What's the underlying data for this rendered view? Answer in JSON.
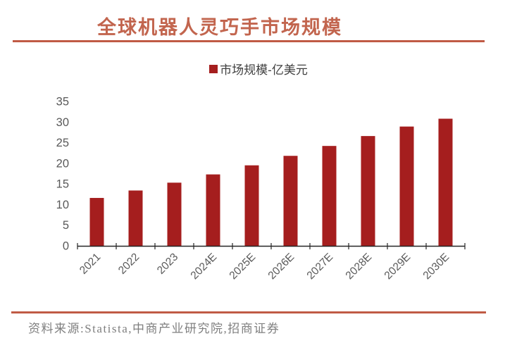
{
  "title": "全球机器人灵巧手市场规模",
  "legend": {
    "label": "市场规模-亿美元"
  },
  "source": {
    "text": "资料来源:Statista,中商产业研究院,招商证券"
  },
  "colors": {
    "bar": "#A51E1E",
    "title_text": "#C2654E",
    "divider": "#C05B45",
    "axis_label": "#595959",
    "legend_text": "#3F3F3F",
    "source_text": "#7F7F7F",
    "axis_line": "#262626"
  },
  "chart_data": {
    "type": "bar",
    "title": "全球机器人灵巧手市场规模",
    "categories": [
      "2021",
      "2022",
      "2023",
      "2024E",
      "2025E",
      "2026E",
      "2027E",
      "2028E",
      "2029E",
      "2030E"
    ],
    "series": [
      {
        "name": "市场规模-亿美元",
        "values": [
          11.7,
          13.5,
          15.4,
          17.4,
          19.6,
          21.9,
          24.3,
          26.7,
          29.0,
          30.9
        ]
      }
    ],
    "xlabel": "",
    "ylabel": "",
    "ylim": [
      0,
      35
    ],
    "ytick_step": 5,
    "yticks": [
      0,
      5,
      10,
      15,
      20,
      25,
      30,
      35
    ],
    "grid": false,
    "legend_position": "top-center",
    "x_label_rotation": -45
  }
}
